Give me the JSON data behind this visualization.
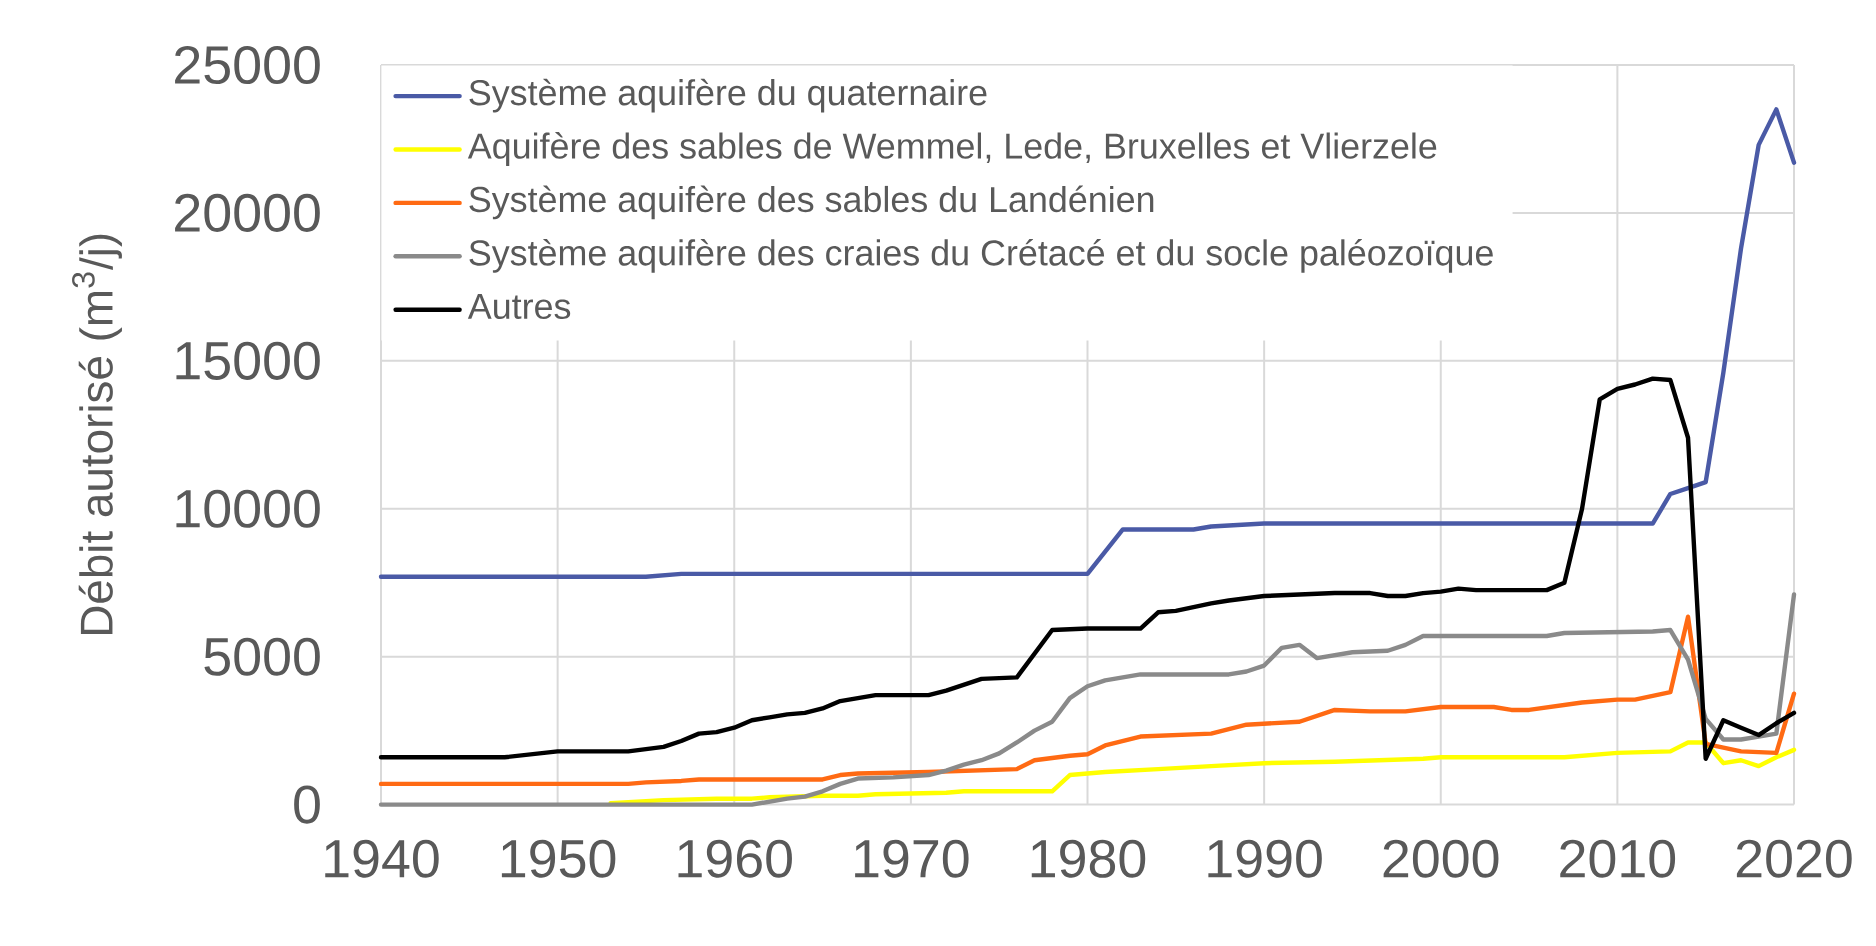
{
  "chart_data": {
    "type": "line",
    "ylabel": "Débit autorisé (m$^{3}$/j)",
    "xlim": [
      1940,
      2020
    ],
    "ylim": [
      0,
      25000
    ],
    "xticks": [
      1940,
      1950,
      1960,
      1970,
      1980,
      1990,
      2000,
      2010,
      2020
    ],
    "yticks": [
      0,
      5000,
      10000,
      15000,
      20000,
      25000
    ],
    "grid": true,
    "legend": "top left",
    "series": [
      {
        "name": "Système aquifère du quaternaire",
        "color": "#4a5aa6",
        "x": [
          1940,
          1955,
          1957,
          1980,
          1982,
          1986,
          1987,
          1990,
          2012,
          2013,
          2014,
          2015,
          2016,
          2017,
          2018,
          2019,
          2020
        ],
        "values": [
          7700,
          7700,
          7800,
          7800,
          9300,
          9300,
          9400,
          9500,
          9500,
          10500,
          10700,
          10900,
          14600,
          18800,
          22300,
          23500,
          21700
        ]
      },
      {
        "name": "Aquifère des sables de Wemmel, Lede, Bruxelles et Vlierzele",
        "color": "#ffff00",
        "x": [
          1953,
          1956,
          1959,
          1961,
          1962,
          1965,
          1967,
          1968,
          1972,
          1973,
          1978,
          1979,
          1980,
          1981,
          1984,
          1987,
          1990,
          1994,
          1999,
          2000,
          2007,
          2010,
          2013,
          2014,
          2015,
          2016,
          2017,
          2018,
          2019,
          2020
        ],
        "values": [
          50,
          150,
          200,
          200,
          250,
          300,
          300,
          350,
          400,
          450,
          450,
          1000,
          1050,
          1100,
          1200,
          1300,
          1400,
          1450,
          1550,
          1600,
          1600,
          1750,
          1800,
          2100,
          2100,
          1400,
          1500,
          1300,
          1600,
          1850
        ]
      },
      {
        "name": "Système aquifère des sables du Landénien",
        "color": "#ff6a13",
        "x": [
          1940,
          1954,
          1955,
          1957,
          1958,
          1965,
          1966,
          1967,
          1971,
          1976,
          1977,
          1979,
          1980,
          1981,
          1983,
          1987,
          1989,
          1992,
          1994,
          1996,
          1998,
          2000,
          2003,
          2004,
          2005,
          2008,
          2010,
          2011,
          2013,
          2014,
          2015,
          2017,
          2019,
          2020
        ],
        "values": [
          700,
          700,
          750,
          800,
          850,
          850,
          1000,
          1050,
          1100,
          1200,
          1500,
          1650,
          1700,
          2000,
          2300,
          2400,
          2700,
          2800,
          3200,
          3150,
          3150,
          3300,
          3300,
          3200,
          3200,
          3450,
          3550,
          3550,
          3800,
          6350,
          2050,
          1800,
          1750,
          3750
        ]
      },
      {
        "name": "Système aquifère des craies du Crétacé et du socle paléozoïque",
        "color": "#8a8a8a",
        "x": [
          1940,
          1961,
          1962,
          1963,
          1964,
          1965,
          1966,
          1967,
          1969,
          1971,
          1972,
          1973,
          1974,
          1975,
          1976,
          1977,
          1978,
          1979,
          1980,
          1981,
          1983,
          1988,
          1989,
          1990,
          1991,
          1992,
          1993,
          1995,
          1997,
          1998,
          1999,
          2006,
          2007,
          2012,
          2013,
          2014,
          2015,
          2016,
          2017,
          2018,
          2019,
          2020
        ],
        "values": [
          0,
          0,
          100,
          200,
          270,
          450,
          700,
          880,
          920,
          1000,
          1150,
          1350,
          1500,
          1730,
          2100,
          2500,
          2800,
          3600,
          4000,
          4200,
          4400,
          4400,
          4500,
          4700,
          5300,
          5400,
          4950,
          5150,
          5200,
          5400,
          5700,
          5700,
          5800,
          5850,
          5900,
          4900,
          2900,
          2200,
          2200,
          2300,
          2400,
          7100
        ]
      },
      {
        "name": "Autres",
        "color": "#000000",
        "x": [
          1940,
          1947,
          1950,
          1954,
          1956,
          1957,
          1958,
          1959,
          1960,
          1961,
          1962,
          1963,
          1964,
          1965,
          1966,
          1967,
          1968,
          1971,
          1972,
          1974,
          1976,
          1978,
          1980,
          1983,
          1984,
          1985,
          1987,
          1988,
          1990,
          1992,
          1994,
          1996,
          1997,
          1998,
          1999,
          2000,
          2001,
          2002,
          2006,
          2007,
          2008,
          2009,
          2010,
          2011,
          2012,
          2013,
          2014,
          2015,
          2016,
          2017,
          2018,
          2019,
          2020
        ],
        "values": [
          1600,
          1600,
          1800,
          1800,
          1950,
          2150,
          2400,
          2450,
          2600,
          2850,
          2950,
          3050,
          3100,
          3250,
          3500,
          3600,
          3700,
          3700,
          3850,
          4250,
          4300,
          5900,
          5950,
          5950,
          6500,
          6550,
          6800,
          6900,
          7050,
          7100,
          7150,
          7150,
          7050,
          7050,
          7150,
          7200,
          7300,
          7250,
          7250,
          7500,
          10000,
          13700,
          14050,
          14200,
          14400,
          14350,
          12400,
          1550,
          2850,
          2600,
          2350,
          2750,
          3100
        ]
      }
    ]
  }
}
